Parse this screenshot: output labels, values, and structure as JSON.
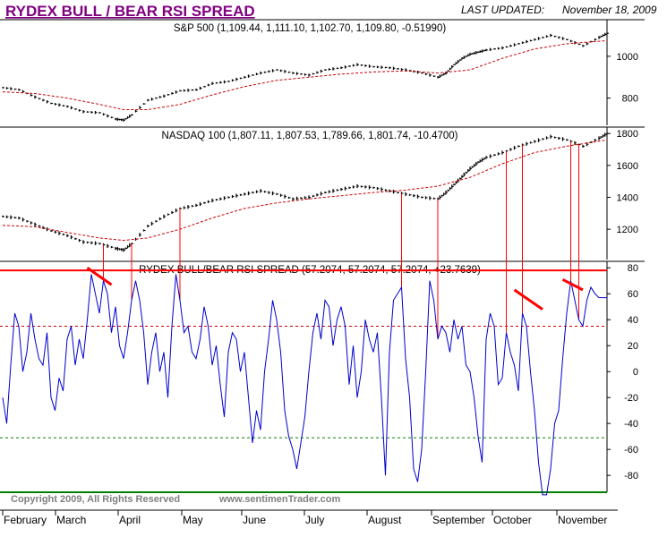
{
  "header": {
    "title": "RYDEX BULL / BEAR RSI SPREAD",
    "updated_label": "LAST UPDATED:",
    "updated_date": "November 18, 2009"
  },
  "footer": {
    "copyright": "Copyright 2009, All Rights Reserved",
    "website": "www.sentimenTrader.com"
  },
  "colors": {
    "title": "#800080",
    "price": "#000000",
    "moving_average": "#cc0000",
    "spread": "#0000cc",
    "upper_band": "#ff0000",
    "lower_band": "#008000",
    "divergence": "#ff0000"
  },
  "chart_data": [
    {
      "type": "ohlc",
      "title": "S&P 500 (1,109.44, 1,111.10, 1,102.70, 1,109.80, -0.51990)",
      "y_ticks": [
        800,
        1000
      ],
      "ylim": [
        670,
        1175
      ],
      "series": [
        {
          "name": "S&P 500",
          "x": [
            0,
            4,
            8,
            12,
            16,
            20,
            24,
            28,
            30,
            32,
            36,
            40,
            44,
            48,
            52,
            56,
            60,
            64,
            68,
            72,
            76,
            80,
            84,
            88,
            92,
            96,
            100,
            104,
            108,
            110,
            112,
            114,
            116,
            118,
            120,
            124,
            128,
            132,
            136,
            140,
            144,
            148,
            150
          ],
          "values": [
            850,
            840,
            805,
            775,
            760,
            735,
            730,
            700,
            695,
            720,
            790,
            810,
            835,
            840,
            870,
            880,
            900,
            920,
            935,
            920,
            910,
            935,
            945,
            960,
            950,
            945,
            935,
            920,
            900,
            920,
            960,
            990,
            1010,
            1020,
            1030,
            1040,
            1060,
            1080,
            1100,
            1080,
            1050,
            1090,
            1110
          ]
        },
        {
          "name": "50-day MA",
          "x": [
            0,
            8,
            16,
            24,
            30,
            36,
            44,
            52,
            60,
            68,
            76,
            84,
            92,
            100,
            108,
            116,
            124,
            132,
            140,
            150
          ],
          "values": [
            830,
            822,
            800,
            770,
            745,
            745,
            770,
            815,
            855,
            885,
            900,
            915,
            925,
            930,
            920,
            935,
            990,
            1035,
            1060,
            1075
          ]
        }
      ]
    },
    {
      "type": "ohlc",
      "title": "NASDAQ 100 (1,807.11, 1,807.53, 1,789.66, 1,801.74, -10.4700)",
      "y_ticks": [
        1200,
        1400,
        1600,
        1800
      ],
      "ylim": [
        1010,
        1840
      ],
      "series": [
        {
          "name": "NASDAQ 100",
          "x": [
            0,
            4,
            8,
            12,
            16,
            20,
            24,
            28,
            30,
            32,
            36,
            40,
            44,
            48,
            52,
            56,
            60,
            64,
            68,
            72,
            76,
            80,
            84,
            88,
            92,
            96,
            100,
            104,
            108,
            110,
            112,
            114,
            116,
            118,
            120,
            124,
            128,
            132,
            136,
            140,
            144,
            148,
            150
          ],
          "values": [
            1280,
            1270,
            1230,
            1190,
            1160,
            1120,
            1110,
            1080,
            1070,
            1110,
            1220,
            1280,
            1330,
            1350,
            1380,
            1400,
            1420,
            1440,
            1420,
            1390,
            1400,
            1430,
            1450,
            1470,
            1460,
            1440,
            1420,
            1400,
            1390,
            1430,
            1480,
            1530,
            1580,
            1620,
            1650,
            1680,
            1720,
            1750,
            1780,
            1760,
            1720,
            1770,
            1800
          ]
        },
        {
          "name": "50-day MA",
          "x": [
            0,
            8,
            16,
            24,
            30,
            36,
            44,
            52,
            60,
            68,
            76,
            84,
            92,
            100,
            108,
            116,
            124,
            132,
            140,
            150
          ],
          "values": [
            1225,
            1215,
            1180,
            1145,
            1130,
            1145,
            1200,
            1270,
            1330,
            1365,
            1390,
            1410,
            1430,
            1445,
            1470,
            1525,
            1610,
            1680,
            1720,
            1760
          ]
        }
      ]
    },
    {
      "type": "line",
      "title": "RYDEX BULL/BEAR RSI SPREAD (57.2074, 57.2074, 57.2074, +23.7639)",
      "xlabel": "",
      "ylabel": "",
      "y_ticks": [
        80,
        60,
        40,
        20,
        0,
        -20,
        -40,
        -60,
        -80
      ],
      "ylim": [
        -93,
        85
      ],
      "upper_band": 78,
      "lower_band": -93,
      "dashed_levels": [
        {
          "value": 35,
          "color": "#cc0000"
        },
        {
          "value": -51,
          "color": "#008000"
        }
      ],
      "x_ticks": [
        "February",
        "March",
        "April",
        "May",
        "June",
        "July",
        "August",
        "September",
        "October",
        "November"
      ],
      "series": [
        {
          "name": "RSI Spread",
          "x": [
            0,
            1,
            2,
            3,
            4,
            5,
            6,
            7,
            8,
            9,
            10,
            11,
            12,
            13,
            14,
            15,
            16,
            17,
            18,
            19,
            20,
            21,
            22,
            23,
            24,
            25,
            26,
            27,
            28,
            29,
            30,
            31,
            32,
            33,
            34,
            35,
            36,
            37,
            38,
            39,
            40,
            41,
            42,
            43,
            44,
            45,
            46,
            47,
            48,
            49,
            50,
            51,
            52,
            53,
            54,
            55,
            56,
            57,
            58,
            59,
            60,
            61,
            62,
            63,
            64,
            65,
            66,
            67,
            68,
            69,
            70,
            71,
            72,
            73,
            74,
            75,
            76,
            77,
            78,
            79,
            80,
            81,
            82,
            83,
            84,
            85,
            86,
            87,
            88,
            89,
            90,
            91,
            92,
            93,
            94,
            95,
            96,
            97,
            98,
            99,
            100,
            101,
            102,
            103,
            104,
            105,
            106,
            107,
            108,
            109,
            110,
            111,
            112,
            113,
            114,
            115,
            116,
            117,
            118,
            119,
            120,
            121,
            122,
            123,
            124,
            125,
            126,
            127,
            128,
            129,
            130,
            131,
            132,
            133,
            134,
            135,
            136,
            137,
            138,
            139,
            140,
            141,
            142,
            143,
            144,
            145,
            146,
            147,
            148,
            149,
            150
          ],
          "values": [
            -20,
            -40,
            5,
            45,
            35,
            0,
            15,
            45,
            25,
            10,
            5,
            30,
            -20,
            -30,
            -5,
            -15,
            25,
            35,
            5,
            25,
            10,
            40,
            75,
            60,
            45,
            70,
            60,
            30,
            50,
            20,
            10,
            30,
            55,
            70,
            55,
            30,
            -10,
            15,
            30,
            0,
            15,
            -20,
            35,
            75,
            55,
            30,
            35,
            15,
            10,
            25,
            50,
            35,
            5,
            20,
            -10,
            -35,
            15,
            30,
            25,
            0,
            15,
            -20,
            -55,
            -30,
            -45,
            0,
            25,
            55,
            40,
            15,
            -30,
            -50,
            -60,
            -75,
            -55,
            -35,
            0,
            30,
            45,
            25,
            55,
            50,
            20,
            40,
            50,
            35,
            -10,
            20,
            -20,
            0,
            40,
            25,
            15,
            30,
            -20,
            -80,
            15,
            55,
            60,
            65,
            10,
            -20,
            -75,
            -85,
            -60,
            0,
            70,
            55,
            25,
            35,
            30,
            15,
            40,
            25,
            35,
            5,
            0,
            -20,
            -50,
            -70,
            25,
            45,
            35,
            -10,
            -5,
            30,
            15,
            5,
            -15,
            45,
            35,
            0,
            -30,
            -70,
            -95,
            -95,
            -75,
            -40,
            -30,
            10,
            45,
            70,
            55,
            40,
            35,
            55,
            65,
            60,
            57,
            57,
            57
          ]
        }
      ],
      "divergence_lines": [
        {
          "x": [
            21,
            27
          ],
          "values": [
            80,
            67
          ]
        },
        {
          "x": [
            127,
            134
          ],
          "values": [
            63,
            48
          ]
        },
        {
          "x": [
            139,
            144
          ],
          "values": [
            71,
            63
          ]
        }
      ],
      "vertical_markers": [
        25,
        32,
        44,
        99,
        108,
        125,
        129,
        141,
        143
      ]
    }
  ]
}
